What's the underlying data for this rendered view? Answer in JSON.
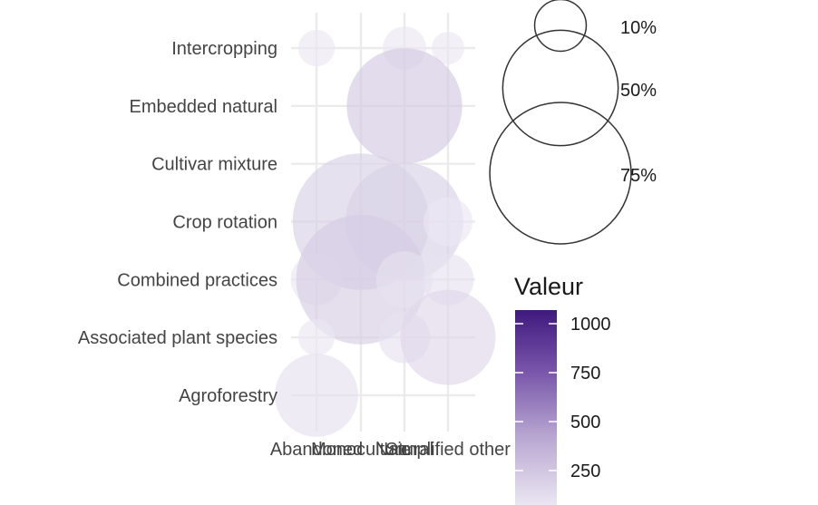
{
  "chart_data": {
    "type": "scatter",
    "x_categories": [
      "Abandoned",
      "Monoculture",
      "Natural",
      "Simplified other"
    ],
    "y_categories": [
      "Agroforestry",
      "Associated plant species",
      "Combined practices",
      "Crop rotation",
      "Cultivar mixture",
      "Embedded natural",
      "Intercropping"
    ],
    "points": [
      {
        "x": "Abandoned",
        "y": "Intercropping",
        "size_pct": 5,
        "value": 100
      },
      {
        "x": "Natural",
        "y": "Intercropping",
        "size_pct": 7,
        "value": 100
      },
      {
        "x": "Simplified other",
        "y": "Intercropping",
        "size_pct": 4,
        "value": 100
      },
      {
        "x": "Natural",
        "y": "Embedded natural",
        "size_pct": 50,
        "value": 230
      },
      {
        "x": "Monoculture",
        "y": "Crop rotation",
        "size_pct": 70,
        "value": 200
      },
      {
        "x": "Natural",
        "y": "Crop rotation",
        "size_pct": 52,
        "value": 200
      },
      {
        "x": "Simplified other",
        "y": "Crop rotation",
        "size_pct": 9,
        "value": 100
      },
      {
        "x": "Abandoned",
        "y": "Combined practices",
        "size_pct": 10,
        "value": 100
      },
      {
        "x": "Monoculture",
        "y": "Combined practices",
        "size_pct": 63,
        "value": 220
      },
      {
        "x": "Natural",
        "y": "Combined practices",
        "size_pct": 12,
        "value": 120
      },
      {
        "x": "Simplified other",
        "y": "Combined practices",
        "size_pct": 10,
        "value": 120
      },
      {
        "x": "Abandoned",
        "y": "Associated plant species",
        "size_pct": 5,
        "value": 100
      },
      {
        "x": "Natural",
        "y": "Associated plant species",
        "size_pct": 10,
        "value": 120
      },
      {
        "x": "Simplified other",
        "y": "Associated plant species",
        "size_pct": 34,
        "value": 170
      },
      {
        "x": "Abandoned",
        "y": "Agroforestry",
        "size_pct": 26,
        "value": 130
      }
    ],
    "size_legend": {
      "entries": [
        {
          "label": "10%",
          "value": 10
        },
        {
          "label": "50%",
          "value": 50
        },
        {
          "label": "75%",
          "value": 75
        }
      ]
    },
    "color_legend": {
      "title": "Valeur",
      "ticks": [
        {
          "label": "1000",
          "value": 1000
        },
        {
          "label": "750",
          "value": 750
        },
        {
          "label": "500",
          "value": 500
        },
        {
          "label": "250",
          "value": 250
        }
      ],
      "range": [
        100,
        1050
      ],
      "low_color": "#ebe6f2",
      "high_color": "#3f1a7d"
    },
    "grid": true,
    "legend_position": "right"
  }
}
